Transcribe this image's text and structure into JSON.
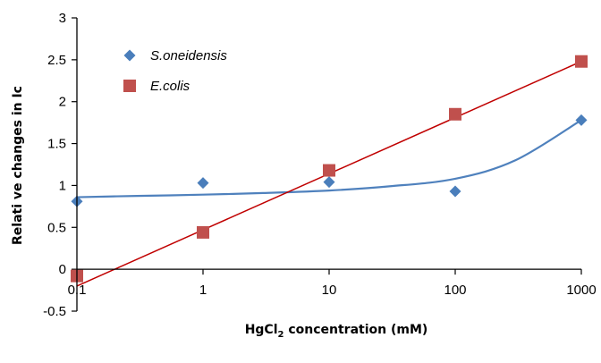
{
  "chart_data": {
    "type": "scatter",
    "xscale": "log",
    "xlim": [
      0.1,
      1000
    ],
    "ylim": [
      -0.5,
      3
    ],
    "x_ticks": [
      0.1,
      1,
      10,
      100,
      1000
    ],
    "x_tick_labels": [
      "0.1",
      "1",
      "10",
      "100",
      "1000"
    ],
    "y_ticks": [
      -0.5,
      0,
      0.5,
      1,
      1.5,
      2,
      2.5,
      3
    ],
    "y_tick_labels": [
      "-0.5",
      "0",
      "0.5",
      "1",
      "1.5",
      "2",
      "2.5",
      "3"
    ],
    "xlabel": {
      "main": "HgCl",
      "sub": "2",
      "rest": " concentration (mM)"
    },
    "ylabel": "Relati ve changes in Ic",
    "grid": false,
    "legend_position": "top-left",
    "series": [
      {
        "name": "S.oneidensis",
        "marker": "diamond",
        "color": "#4a7ebb",
        "trend_color": "#4f81bd",
        "x": [
          0.1,
          1,
          10,
          100,
          1000
        ],
        "y": [
          0.81,
          1.03,
          1.04,
          0.93,
          1.78
        ],
        "trendline": "polynomial",
        "trend_points": [
          [
            0.1,
            0.86
          ],
          [
            0.3,
            0.875
          ],
          [
            1,
            0.89
          ],
          [
            3,
            0.91
          ],
          [
            10,
            0.94
          ],
          [
            30,
            0.99
          ],
          [
            100,
            1.08
          ],
          [
            300,
            1.3
          ],
          [
            1000,
            1.78
          ]
        ]
      },
      {
        "name": "E.colis",
        "marker": "square",
        "color": "#c0504d",
        "trend_color": "#c00000",
        "x": [
          0.1,
          1,
          10,
          100,
          1000
        ],
        "y": [
          -0.08,
          0.44,
          1.18,
          1.85,
          2.48
        ],
        "trendline": "linear",
        "trend_points": [
          [
            0.1,
            -0.2
          ],
          [
            1000,
            2.48
          ]
        ]
      }
    ]
  }
}
